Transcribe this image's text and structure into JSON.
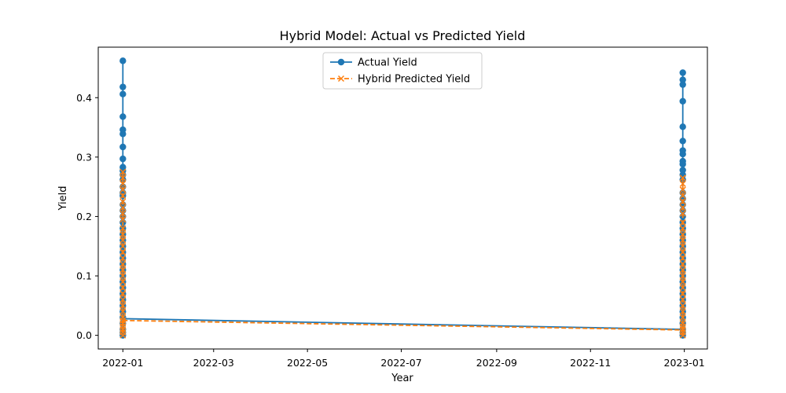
{
  "chart_data": {
    "type": "line",
    "title": "Hybrid Model: Actual vs Predicted Yield",
    "xlabel": "Year",
    "ylabel": "Yield",
    "xlim": [
      "2021-12-16",
      "2023-01-16"
    ],
    "ylim": [
      -0.023,
      0.485
    ],
    "x_ticks": [
      "2022-01",
      "2022-03",
      "2022-05",
      "2022-07",
      "2022-09",
      "2022-11",
      "2023-01"
    ],
    "y_ticks": [
      0.0,
      0.1,
      0.2,
      0.3,
      0.4
    ],
    "y_tick_labels": [
      "0.0",
      "0.1",
      "0.2",
      "0.3",
      "0.4"
    ],
    "grid": false,
    "legend_position": "upper center",
    "series": [
      {
        "name": "Actual Yield",
        "color": "#1f77b4",
        "line_style": "solid",
        "marker": "circle",
        "points": [
          {
            "x": "2022-01-01",
            "y": [
              0.462,
              0.418,
              0.406,
              0.368,
              0.346,
              0.339,
              0.317,
              0.297,
              0.283,
              0.277,
              0.27,
              0.262,
              0.25,
              0.24,
              0.235,
              0.22,
              0.21,
              0.2,
              0.19,
              0.18,
              0.17,
              0.16,
              0.15,
              0.14,
              0.13,
              0.12,
              0.11,
              0.1,
              0.09,
              0.08,
              0.07,
              0.06,
              0.05,
              0.04,
              0.03,
              0.02,
              0.01,
              0.005,
              0.0
            ]
          },
          {
            "x": "2022-12-31",
            "y": [
              0.442,
              0.43,
              0.422,
              0.394,
              0.351,
              0.327,
              0.311,
              0.305,
              0.293,
              0.288,
              0.278,
              0.27,
              0.262,
              0.24,
              0.23,
              0.22,
              0.21,
              0.2,
              0.19,
              0.18,
              0.17,
              0.16,
              0.15,
              0.14,
              0.13,
              0.12,
              0.11,
              0.1,
              0.09,
              0.08,
              0.07,
              0.06,
              0.05,
              0.04,
              0.03,
              0.02,
              0.01,
              0.005,
              0.0
            ]
          }
        ]
      },
      {
        "name": "Hybrid Predicted Yield",
        "color": "#ff7f0e",
        "line_style": "dashed",
        "marker": "x",
        "points": [
          {
            "x": "2022-01-01",
            "y": [
              0.275,
              0.265,
              0.255,
              0.245,
              0.235,
              0.225,
              0.215,
              0.205,
              0.195,
              0.18,
              0.17,
              0.16,
              0.15,
              0.14,
              0.13,
              0.12,
              0.11,
              0.1,
              0.09,
              0.08,
              0.07,
              0.06,
              0.05,
              0.04,
              0.03,
              0.025,
              0.02,
              0.015,
              0.01,
              0.005,
              0.0
            ]
          },
          {
            "x": "2022-12-31",
            "y": [
              0.265,
              0.255,
              0.245,
              0.235,
              0.225,
              0.215,
              0.205,
              0.19,
              0.18,
              0.17,
              0.16,
              0.15,
              0.14,
              0.13,
              0.12,
              0.11,
              0.1,
              0.09,
              0.08,
              0.07,
              0.06,
              0.05,
              0.04,
              0.03,
              0.02,
              0.015,
              0.01,
              0.005,
              0.0
            ]
          }
        ],
        "bridge": [
          {
            "x": "2022-01-01",
            "y": 0.025
          },
          {
            "x": "2022-12-31",
            "y": 0.009
          }
        ]
      }
    ],
    "actual_bridge": [
      {
        "x": "2022-01-01",
        "y": 0.028
      },
      {
        "x": "2022-12-31",
        "y": 0.01
      }
    ]
  }
}
